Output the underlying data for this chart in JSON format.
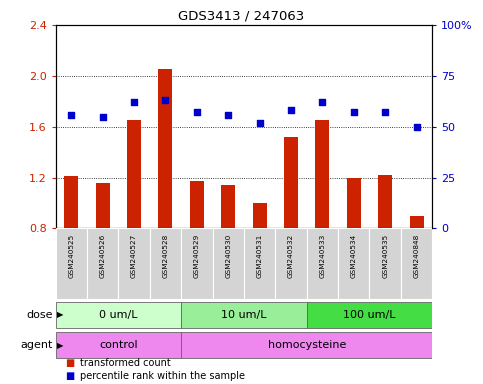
{
  "title": "GDS3413 / 247063",
  "samples": [
    "GSM240525",
    "GSM240526",
    "GSM240527",
    "GSM240528",
    "GSM240529",
    "GSM240530",
    "GSM240531",
    "GSM240532",
    "GSM240533",
    "GSM240534",
    "GSM240535",
    "GSM240848"
  ],
  "bar_values": [
    1.21,
    1.16,
    1.65,
    2.05,
    1.17,
    1.14,
    1.0,
    1.52,
    1.65,
    1.2,
    1.22,
    0.9
  ],
  "dot_values": [
    56,
    55,
    62,
    63,
    57,
    56,
    52,
    58,
    62,
    57,
    57,
    50
  ],
  "bar_color": "#cc2200",
  "dot_color": "#0000cc",
  "ylim_left": [
    0.8,
    2.4
  ],
  "ylim_right": [
    0,
    100
  ],
  "yticks_left": [
    0.8,
    1.2,
    1.6,
    2.0,
    2.4
  ],
  "yticks_right": [
    0,
    25,
    50,
    75,
    100
  ],
  "ytick_labels_right": [
    "0",
    "25",
    "50",
    "75",
    "100%"
  ],
  "dose_groups": [
    {
      "label": "0 um/L",
      "start": 0,
      "end": 3,
      "color": "#ccffcc"
    },
    {
      "label": "10 um/L",
      "start": 4,
      "end": 7,
      "color": "#99ee99"
    },
    {
      "label": "100 um/L",
      "start": 8,
      "end": 11,
      "color": "#44dd44"
    }
  ],
  "agent_groups": [
    {
      "label": "control",
      "start": 0,
      "end": 3,
      "color": "#ee88ee"
    },
    {
      "label": "homocysteine",
      "start": 4,
      "end": 11,
      "color": "#ee88ee"
    }
  ],
  "legend_bar_label": "transformed count",
  "legend_dot_label": "percentile rank within the sample",
  "row_label_dose": "dose",
  "row_label_agent": "agent"
}
